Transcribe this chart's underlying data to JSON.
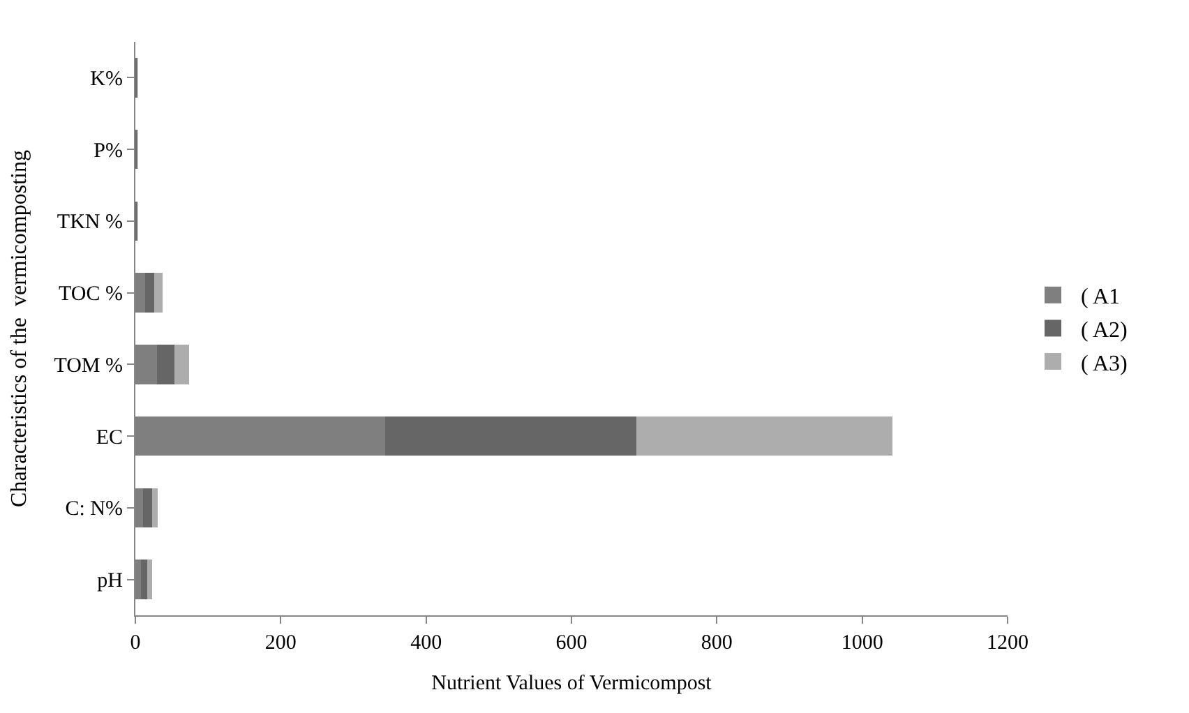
{
  "chart_data": {
    "type": "bar",
    "orientation": "horizontal",
    "stacked": true,
    "xlabel": "Nutrient Values of Vermicompost",
    "ylabel": "Characteristics of the  vermicomposting",
    "categories": [
      "K%",
      "P%",
      "TKN %",
      "TOC %",
      "TOM %",
      "EC",
      "C: N%",
      "pH"
    ],
    "series": [
      {
        "name": "( A1",
        "color": "#7f7f7f",
        "values": [
          1,
          1,
          1,
          13,
          30,
          344,
          11,
          8
        ]
      },
      {
        "name": "( A2)",
        "color": "#666666",
        "values": [
          1,
          1,
          1,
          13,
          24,
          345,
          12,
          8
        ]
      },
      {
        "name": "( A3)",
        "color": "#adadad",
        "values": [
          1,
          1,
          1,
          11,
          20,
          353,
          8,
          7
        ]
      }
    ],
    "xlim": [
      0,
      1200
    ],
    "xticks": [
      0,
      200,
      400,
      600,
      800,
      1000,
      1200
    ],
    "legend": "right",
    "grid": false
  }
}
